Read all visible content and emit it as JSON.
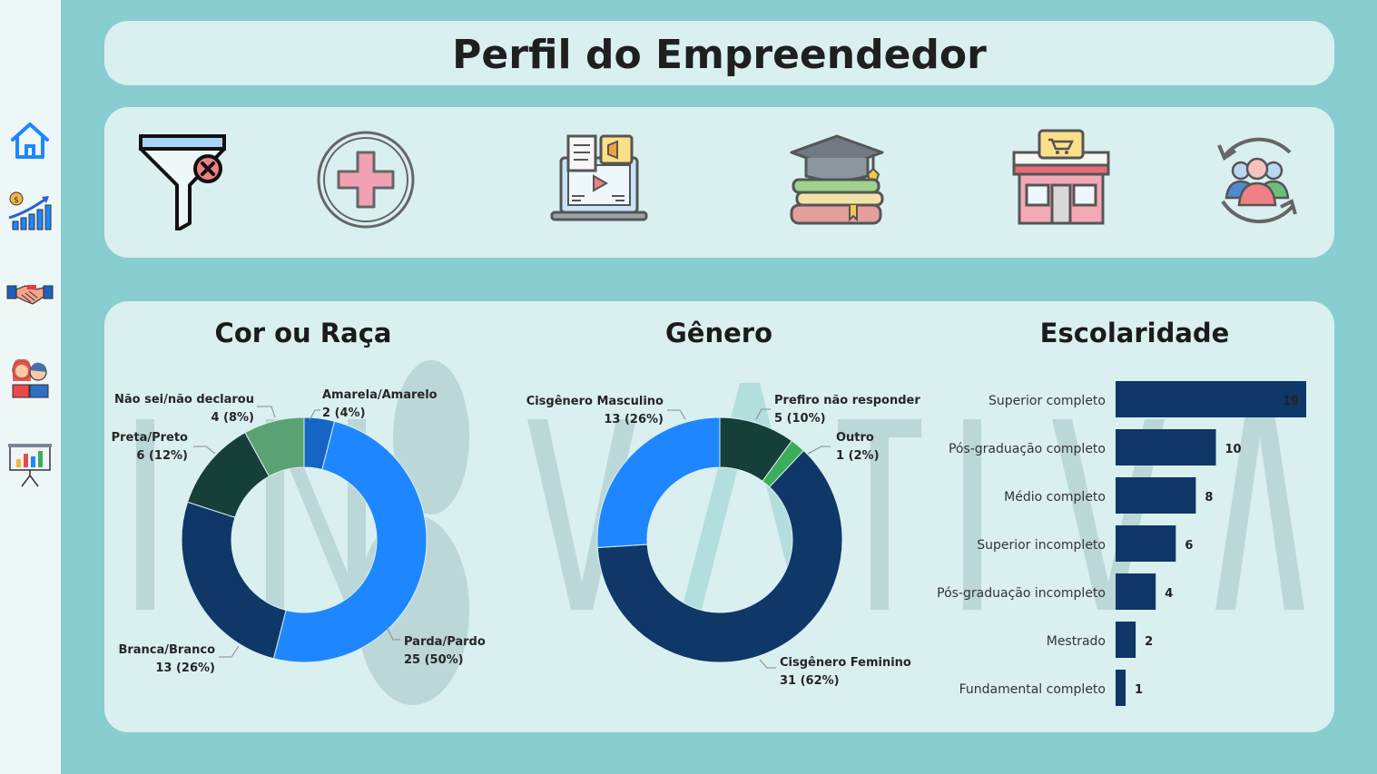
{
  "sidebar": {
    "items": [
      {
        "icon": "home-icon"
      },
      {
        "icon": "growth-chart-icon"
      },
      {
        "icon": "handshake-icon"
      },
      {
        "icon": "people-icon"
      },
      {
        "icon": "presentation-board-icon"
      }
    ]
  },
  "header": {
    "title": "Perfil do Empreendedor"
  },
  "filters": {
    "icons": [
      "filter-clear-icon",
      "plus-icon",
      "online-course-icon",
      "education-books-icon",
      "store-icon",
      "people-cycle-icon"
    ]
  },
  "watermark": "INOVATIVA",
  "colors": {
    "background": "#88cdd0",
    "panel": "#daeff0",
    "navy": "#0f3767",
    "bright_blue": "#1e87ff",
    "dark_green": "#173f39",
    "mid_green": "#5aa273",
    "royal_blue": "#1565c4",
    "light_green": "#3cae5a"
  },
  "chart_data": [
    {
      "type": "pie",
      "title": "Cor ou Raça",
      "slices": [
        {
          "label": "Amarela/Amarelo",
          "value": 2,
          "percent_label": "2 (4%)",
          "color": "#1565c4"
        },
        {
          "label": "Parda/Pardo",
          "value": 25,
          "percent_label": "25 (50%)",
          "color": "#1e87ff"
        },
        {
          "label": "Branca/Branco",
          "value": 13,
          "percent_label": "13 (26%)",
          "color": "#0f3767"
        },
        {
          "label": "Preta/Preto",
          "value": 6,
          "percent_label": "6 (12%)",
          "color": "#173f39"
        },
        {
          "label": "Não sei/não declarou",
          "value": 4,
          "percent_label": "4 (8%)",
          "color": "#5aa273"
        }
      ]
    },
    {
      "type": "pie",
      "title": "Gênero",
      "slices": [
        {
          "label": "Prefiro não responder",
          "value": 5,
          "percent_label": "5 (10%)",
          "color": "#173f39"
        },
        {
          "label": "Outro",
          "value": 1,
          "percent_label": "1 (2%)",
          "color": "#3cae5a"
        },
        {
          "label": "Cisgênero Feminino",
          "value": 31,
          "percent_label": "31 (62%)",
          "color": "#0f3767"
        },
        {
          "label": "Cisgênero Masculino",
          "value": 13,
          "percent_label": "13 (26%)",
          "color": "#1e87ff"
        }
      ]
    },
    {
      "type": "bar",
      "title": "Escolaridade",
      "orientation": "horizontal",
      "categories": [
        "Superior completo",
        "Pós-graduação completo",
        "Médio completo",
        "Superior incompleto",
        "Pós-graduação incompleto",
        "Mestrado",
        "Fundamental completo"
      ],
      "values": [
        19,
        10,
        8,
        6,
        4,
        2,
        1
      ],
      "xlim": [
        0,
        19
      ],
      "color": "#0f3767"
    }
  ]
}
